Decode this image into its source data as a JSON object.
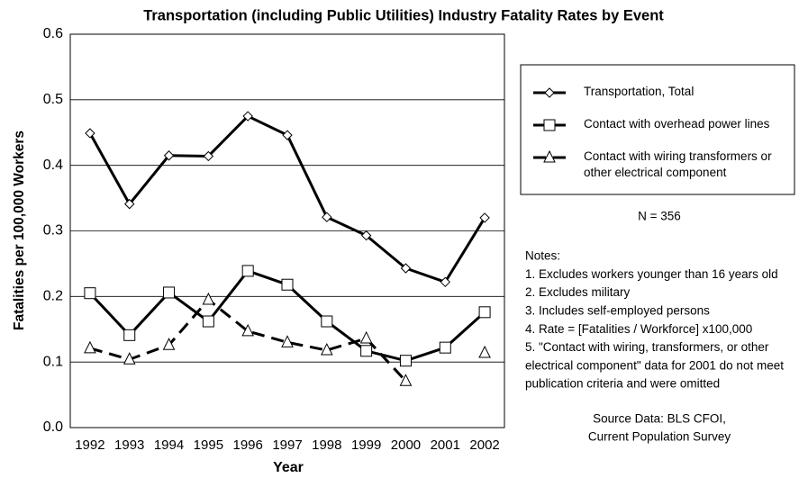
{
  "chart_data": {
    "type": "line",
    "title": "Transportation (including Public Utilities) Industry Fatality Rates by Event",
    "y_label": "Fatalities per 100,000 Workers",
    "x_label": "Year",
    "categories": [
      "1992",
      "1993",
      "1994",
      "1995",
      "1996",
      "1997",
      "1998",
      "1999",
      "2000",
      "2001",
      "2002"
    ],
    "series": [
      {
        "name": "Transportation, Total",
        "color": "#000000",
        "marker": "diamond",
        "dashed": false,
        "values": [
          0.449,
          0.341,
          0.415,
          0.414,
          0.475,
          0.446,
          0.321,
          0.293,
          0.243,
          0.222,
          0.32
        ]
      },
      {
        "name": "Contact with overhead power lines",
        "color": "#000000",
        "marker": "square",
        "dashed": false,
        "values": [
          0.205,
          0.141,
          0.206,
          0.162,
          0.239,
          0.218,
          0.162,
          0.117,
          0.102,
          0.122,
          0.176
        ]
      },
      {
        "name": "Contact with wiring transformers or other electrical component",
        "color": "#000000",
        "marker": "triangle",
        "dashed": true,
        "values": [
          0.121,
          0.104,
          0.126,
          0.195,
          0.147,
          0.13,
          0.118,
          0.136,
          0.071,
          null,
          0.114
        ]
      }
    ],
    "ylim": [
      0,
      0.6
    ],
    "yticks": [
      {
        "value": 0,
        "label": "0.0"
      },
      0.1,
      0.2,
      0.3,
      0.4,
      0.5,
      0.6
    ],
    "grid": true,
    "legend": "right",
    "sample_note": "N = 356",
    "notes": [
      "Notes:",
      "1.  Excludes workers younger than 16 years old",
      "2.  Excludes military",
      "3.  Includes self-employed persons",
      "4.  Rate = [Fatalities / Workforce] x100,000",
      "5.  \"Contact with wiring, transformers, or other",
      "electrical component\" data for 2001 do not meet",
      "publication criteria and were omitted"
    ],
    "source": [
      "Source Data: BLS CFOI,",
      "Current Population Survey"
    ]
  }
}
